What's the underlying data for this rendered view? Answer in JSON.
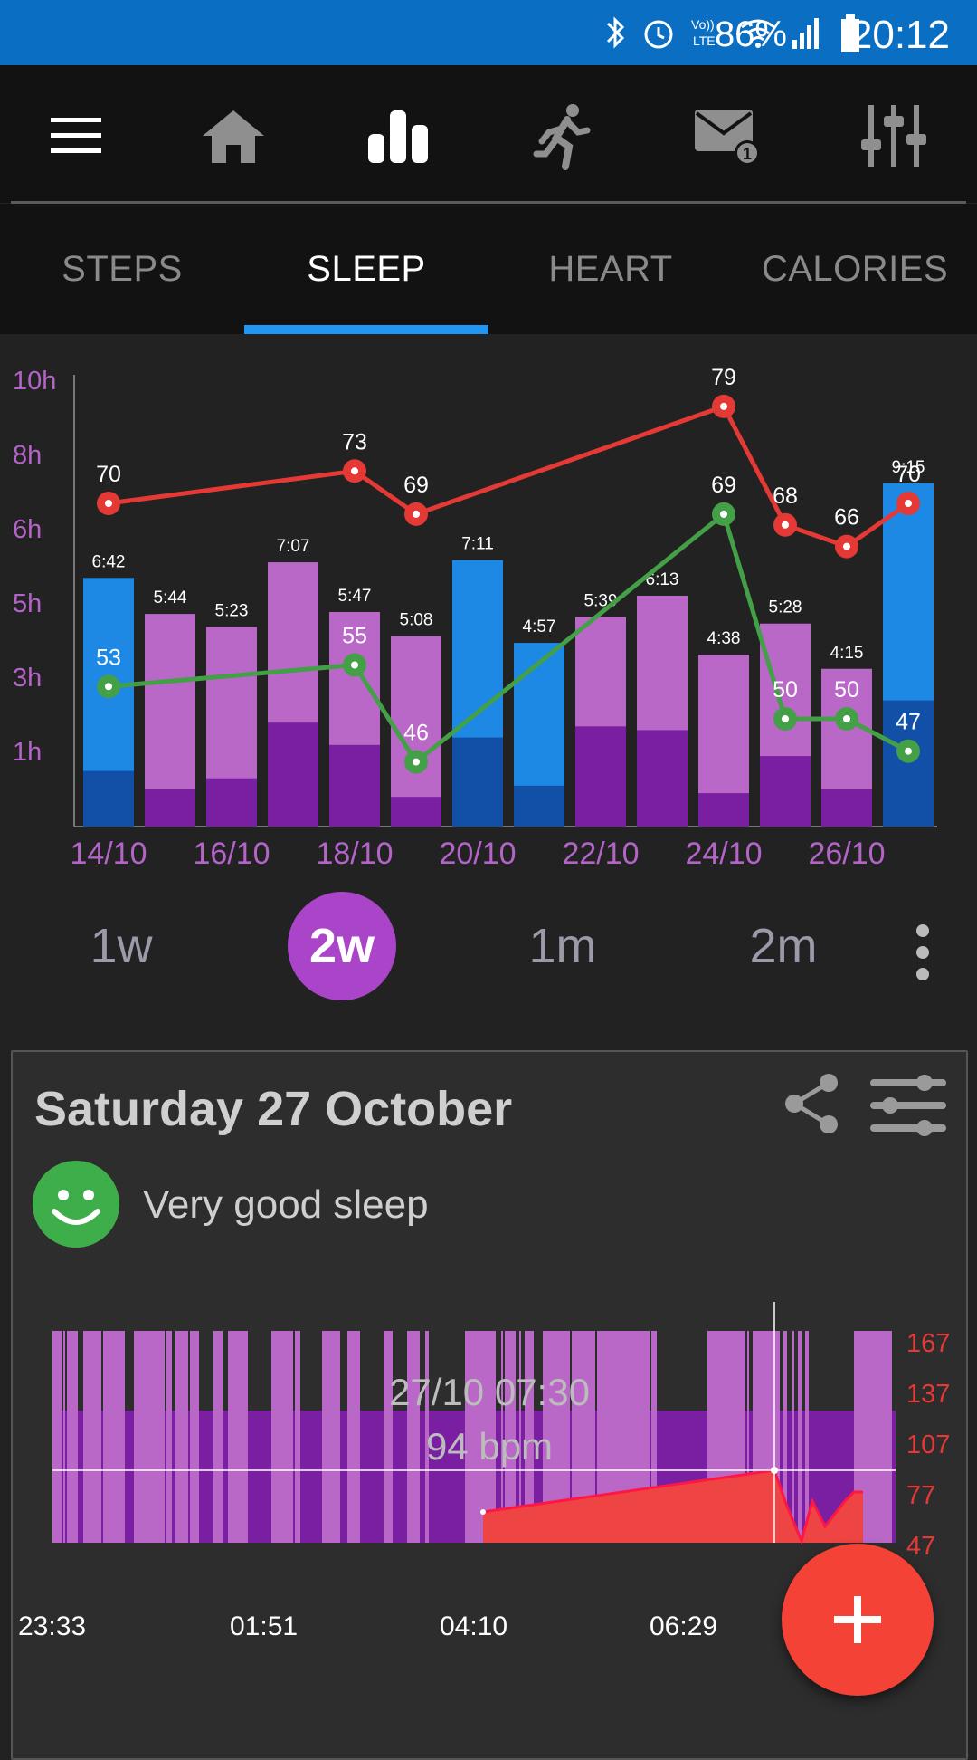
{
  "status": {
    "battery": "86%",
    "time": "20:12"
  },
  "toolbar": {
    "icons": [
      "menu-icon",
      "home-icon",
      "bar-chart-icon",
      "runner-icon",
      "mail-icon",
      "sliders-icon"
    ],
    "mail_badge": "1"
  },
  "tabs": [
    {
      "label": "STEPS"
    },
    {
      "label": "SLEEP"
    },
    {
      "label": "HEART"
    },
    {
      "label": "CALORIES"
    }
  ],
  "chart_data": {
    "type": "bar",
    "title": "",
    "y_ticks": [
      "10h",
      "8h",
      "6h",
      "5h",
      "3h",
      "1h"
    ],
    "x_ticks": [
      "14/10",
      "16/10",
      "18/10",
      "20/10",
      "22/10",
      "24/10",
      "26/10"
    ],
    "bars": [
      {
        "duration": "6:42",
        "hours": 6.7,
        "color": "#1e88e5",
        "deep": 1.5
      },
      {
        "duration": "5:44",
        "hours": 5.73,
        "color": "#ba68c8",
        "deep": 1.0
      },
      {
        "duration": "5:23",
        "hours": 5.38,
        "color": "#ba68c8",
        "deep": 1.3
      },
      {
        "duration": "7:07",
        "hours": 7.12,
        "color": "#ba68c8",
        "deep": 2.8
      },
      {
        "duration": "5:47",
        "hours": 5.78,
        "color": "#ba68c8",
        "deep": 2.2
      },
      {
        "duration": "5:08",
        "hours": 5.13,
        "color": "#ba68c8",
        "deep": 0.8
      },
      {
        "duration": "7:11",
        "hours": 7.18,
        "color": "#1e88e5",
        "deep": 2.4
      },
      {
        "duration": "4:57",
        "hours": 4.95,
        "color": "#1e88e5",
        "deep": 1.1
      },
      {
        "duration": "5:39",
        "hours": 5.65,
        "color": "#ba68c8",
        "deep": 2.7
      },
      {
        "duration": "6:13",
        "hours": 6.22,
        "color": "#ba68c8",
        "deep": 2.6
      },
      {
        "duration": "4:38",
        "hours": 4.63,
        "color": "#ba68c8",
        "deep": 0.9
      },
      {
        "duration": "5:28",
        "hours": 5.47,
        "color": "#ba68c8",
        "deep": 1.9
      },
      {
        "duration": "4:15",
        "hours": 4.25,
        "color": "#ba68c8",
        "deep": 1.0
      },
      {
        "duration": "9:15",
        "hours": 9.25,
        "color": "#1e88e5",
        "deep": 3.4
      }
    ],
    "red_series": [
      {
        "index": 0,
        "value": 70
      },
      {
        "index": 4,
        "value": 73
      },
      {
        "index": 5,
        "value": 69
      },
      {
        "index": 10,
        "value": 79
      },
      {
        "index": 11,
        "value": 68
      },
      {
        "index": 12,
        "value": 66
      },
      {
        "index": 13,
        "value": 70
      }
    ],
    "green_series": [
      {
        "index": 0,
        "value": 53
      },
      {
        "index": 4,
        "value": 55
      },
      {
        "index": 5,
        "value": 46
      },
      {
        "index": 10,
        "value": 69
      },
      {
        "index": 11,
        "value": 50
      },
      {
        "index": 12,
        "value": 50
      },
      {
        "index": 13,
        "value": 47
      }
    ]
  },
  "ranges": [
    {
      "label": "1w"
    },
    {
      "label": "2w",
      "selected": true
    },
    {
      "label": "1m"
    },
    {
      "label": "2m"
    }
  ],
  "card": {
    "date": "Saturday 27 October",
    "quality": "Very good sleep",
    "hr_ticks": [
      "167",
      "137",
      "107",
      "77",
      "47"
    ],
    "time_ticks": [
      "23:33",
      "01:51",
      "04:10",
      "06:29"
    ],
    "selected_time": "27/10 07:30",
    "selected_bpm": "94 bpm"
  }
}
